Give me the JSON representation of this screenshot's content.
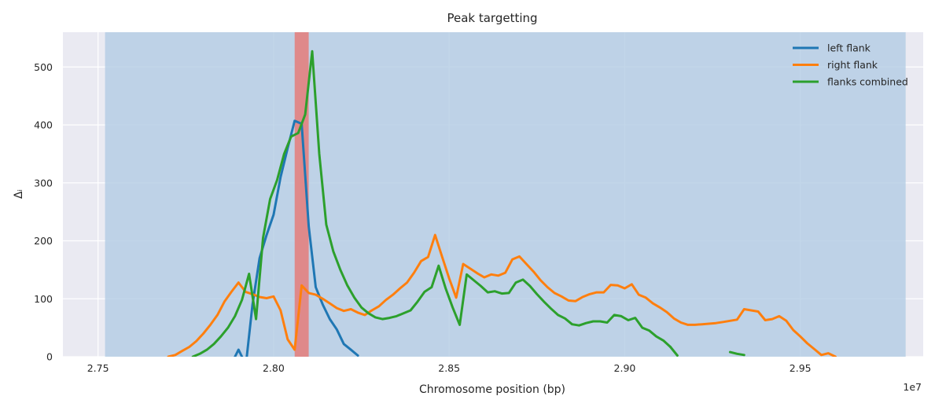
{
  "chart_data": {
    "type": "line",
    "title": "Peak targetting",
    "xlabel": "Chromosome position (bp)",
    "ylabel": "Δᵢ",
    "offset_text": "1e7",
    "xlim": [
      27400000,
      29850000
    ],
    "ylim": [
      0,
      560
    ],
    "x_ticks": [
      27500000,
      28000000,
      28500000,
      29000000,
      29500000
    ],
    "x_tick_labels": [
      "2.75",
      "2.80",
      "2.85",
      "2.90",
      "2.95"
    ],
    "y_ticks": [
      0,
      100,
      200,
      300,
      400,
      500
    ],
    "y_tick_labels": [
      "0",
      "100",
      "200",
      "300",
      "400",
      "500"
    ],
    "grid": true,
    "legend_position": "top-right",
    "background_color": "#eaeaf2",
    "shaded_regions": [
      {
        "x0": 27520000,
        "x1": 29800000,
        "color": "#b5cde4",
        "opacity": 0.82
      },
      {
        "x0": 28060000,
        "x1": 28100000,
        "color": "#e08585",
        "opacity": 0.95
      }
    ],
    "series": [
      {
        "name": "left flank",
        "color": "#1f77b4",
        "segments": [
          {
            "x": [
              27890000,
              27900000,
              27910000,
              27920000,
              27940000,
              27960000,
              27980000,
              28000000,
              28020000,
              28040000,
              28060000,
              28080000,
              28100000,
              28120000,
              28140000,
              28160000,
              28180000,
              28200000,
              28220000,
              28240000
            ],
            "y": [
              0,
              12,
              0,
              -20,
              90,
              170,
              210,
              245,
              310,
              360,
              407,
              402,
              225,
              120,
              90,
              65,
              47,
              22,
              12,
              2
            ]
          }
        ]
      },
      {
        "name": "right flank",
        "color": "#ff7f0e",
        "segments": [
          {
            "x": [
              27700000,
              27720000,
              27740000,
              27760000,
              27780000,
              27800000,
              27820000,
              27840000,
              27860000,
              27880000,
              27900000,
              27920000,
              27940000,
              27960000,
              27980000,
              28000000,
              28020000,
              28040000,
              28060000,
              28080000,
              28100000,
              28120000,
              28140000,
              28160000,
              28180000,
              28200000,
              28220000,
              28240000,
              28260000,
              28280000,
              28300000,
              28320000,
              28340000,
              28360000,
              28380000,
              28400000,
              28420000,
              28440000,
              28460000,
              28480000,
              28500000,
              28520000,
              28540000,
              28560000,
              28580000,
              28600000,
              28620000,
              28640000,
              28660000,
              28680000,
              28700000,
              28720000,
              28740000,
              28760000,
              28780000,
              28800000,
              28820000,
              28840000,
              28860000,
              28880000,
              28900000,
              28920000,
              28940000,
              28960000,
              28980000,
              29000000,
              29020000,
              29040000,
              29060000,
              29080000,
              29100000,
              29120000,
              29140000,
              29160000,
              29180000,
              29200000,
              29220000,
              29240000,
              29260000,
              29280000,
              29300000,
              29320000,
              29340000,
              29360000,
              29380000,
              29400000,
              29420000,
              29440000,
              29460000,
              29480000,
              29500000,
              29520000,
              29540000,
              29560000,
              29580000,
              29600000
            ],
            "y": [
              0,
              3,
              10,
              17,
              27,
              40,
              55,
              72,
              95,
              112,
              128,
              112,
              108,
              103,
              101,
              104,
              80,
              30,
              12,
              123,
              110,
              107,
              100,
              92,
              84,
              79,
              82,
              76,
              72,
              80,
              87,
              98,
              107,
              118,
              128,
              145,
              165,
              172,
              210,
              172,
              135,
              102,
              160,
              152,
              144,
              137,
              142,
              140,
              145,
              168,
              173,
              160,
              147,
              132,
              120,
              110,
              104,
              97,
              96,
              103,
              108,
              111,
              111,
              124,
              123,
              118,
              125,
              107,
              102,
              92,
              85,
              77,
              66,
              59,
              55,
              55,
              56,
              57,
              58,
              60,
              62,
              64,
              82,
              80,
              78,
              63,
              65,
              70,
              62,
              46,
              35,
              23,
              13,
              3,
              6,
              0
            ]
          }
        ]
      },
      {
        "name": "flanks combined",
        "color": "#2ca02c",
        "segments": [
          {
            "x": [
              27770000,
              27790000,
              27810000,
              27830000,
              27850000,
              27870000,
              27890000,
              27910000,
              27930000,
              27950000,
              27970000,
              27990000,
              28010000,
              28030000,
              28050000,
              28070000,
              28090000,
              28110000,
              28130000,
              28150000,
              28170000,
              28190000,
              28210000,
              28230000,
              28250000,
              28270000,
              28290000,
              28310000,
              28330000,
              28350000,
              28370000,
              28390000,
              28410000,
              28430000,
              28450000,
              28470000,
              28490000,
              28510000,
              28530000,
              28550000,
              28570000,
              28590000,
              28610000,
              28630000,
              28650000,
              28670000,
              28690000,
              28710000,
              28730000,
              28750000,
              28770000,
              28790000,
              28810000,
              28830000,
              28850000,
              28870000,
              28890000,
              28910000,
              28930000,
              28950000,
              28970000,
              28990000,
              29010000,
              29030000,
              29050000,
              29070000,
              29090000,
              29110000,
              29130000
            ],
            "y": [
              0,
              5,
              12,
              22,
              35,
              50,
              70,
              98,
              143,
              65,
              205,
              272,
              305,
              350,
              380,
              386,
              418,
              527,
              350,
              228,
              182,
              150,
              123,
              102,
              85,
              75,
              68,
              65,
              67,
              70,
              75,
              80,
              95,
              112,
              120,
              157,
              118,
              85,
              55,
              142,
              132,
              122,
              111,
              113,
              109,
              110,
              128,
              133,
              122,
              108,
              95,
              83,
              72,
              66,
              56,
              54,
              58,
              61,
              61,
              59,
              72,
              70,
              63,
              67,
              50,
              45,
              35,
              28,
              17
            ]
          },
          {
            "x": [
              29130000,
              29150000
            ],
            "y": [
              17,
              2
            ]
          },
          {
            "x": [
              29300000,
              29320000,
              29340000
            ],
            "y": [
              8,
              5,
              3
            ]
          }
        ]
      }
    ]
  }
}
